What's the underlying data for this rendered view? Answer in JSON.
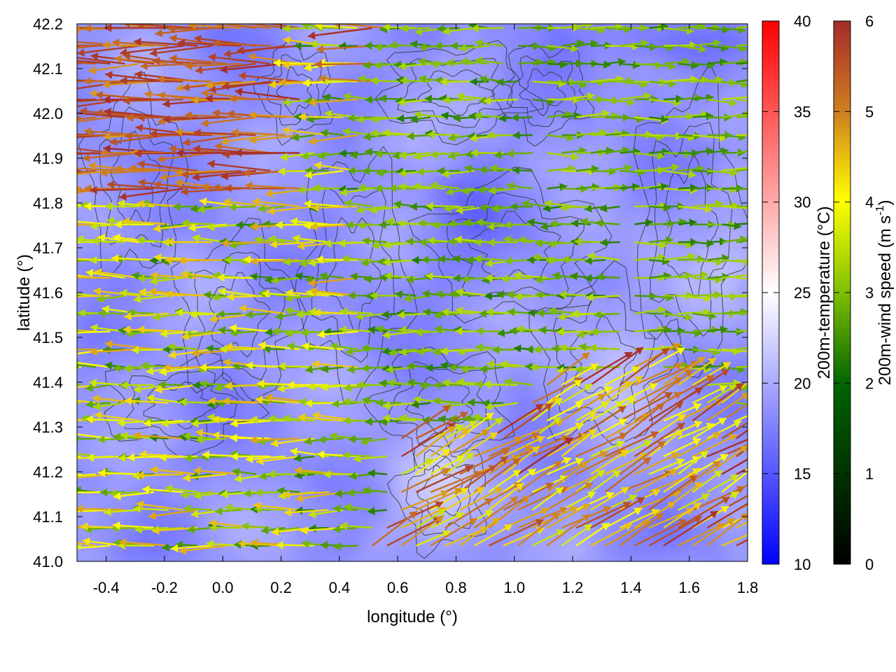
{
  "chart_data": {
    "type": "heatmap",
    "xlabel": "longitude (°)",
    "ylabel": "latitude (°)",
    "xlim": [
      -0.5,
      1.8
    ],
    "ylim": [
      41.0,
      42.2
    ],
    "xticks": [
      "-0.4",
      "-0.2",
      "0.0",
      "0.2",
      "0.4",
      "0.6",
      "0.8",
      "1.0",
      "1.2",
      "1.4",
      "1.6",
      "1.8"
    ],
    "yticks": [
      "41.0",
      "41.1",
      "41.2",
      "41.3",
      "41.4",
      "41.5",
      "41.6",
      "41.7",
      "41.8",
      "41.9",
      "42.0",
      "42.1",
      "42.2"
    ],
    "grid": true,
    "temperature_colorbar": {
      "label": "200m-temperature (°C)",
      "range": [
        10,
        40
      ],
      "ticks": [
        "10",
        "15",
        "20",
        "25",
        "30",
        "35",
        "40"
      ],
      "colors": [
        "#0000ff",
        "#ffffff",
        "#ff0000"
      ]
    },
    "wind_colorbar": {
      "label_main": "200m-wind speed (m s",
      "label_exp": "-1",
      "label_close": ")",
      "range": [
        0,
        6
      ],
      "ticks": [
        "0",
        "1",
        "2",
        "3",
        "4",
        "5",
        "6"
      ],
      "colors": [
        "#000000",
        "#006400",
        "#7fbf00",
        "#ffff00",
        "#d08020",
        "#a52a2a"
      ]
    },
    "temperature_field_range_approx": [
      14,
      25
    ],
    "wind_regions": [
      {
        "lon": [
          -0.5,
          0.5
        ],
        "lat": [
          41.0,
          42.2
        ],
        "direction": "westward",
        "speed_range": [
          1.5,
          4.5
        ]
      },
      {
        "lon": [
          0.5,
          1.4
        ],
        "lat": [
          41.4,
          41.8
        ],
        "direction": "westward",
        "speed_range": [
          1.5,
          3.0
        ]
      },
      {
        "lon": [
          0.6,
          1.8
        ],
        "lat": [
          41.0,
          41.3
        ],
        "direction": "northeastward",
        "speed_range": [
          3.0,
          6.0
        ]
      },
      {
        "lon": [
          1.1,
          1.8
        ],
        "lat": [
          41.5,
          42.2
        ],
        "direction": "eastward",
        "speed_range": [
          1.5,
          3.0
        ]
      },
      {
        "lon": [
          -0.5,
          0.3
        ],
        "lat": [
          41.8,
          42.2
        ],
        "direction": "westward",
        "speed_range": [
          4.5,
          6.0
        ]
      }
    ]
  }
}
